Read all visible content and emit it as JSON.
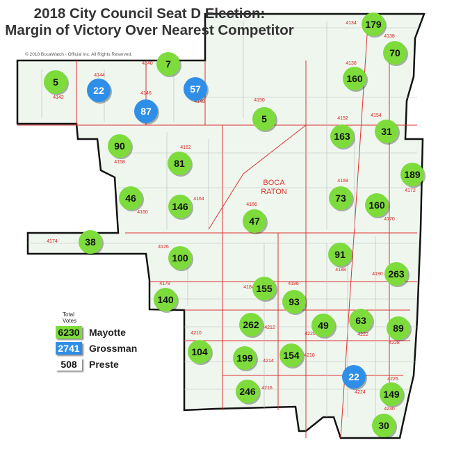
{
  "title_line1": "2018 City Council Seat D Election:",
  "title_line2": "Margin of Victory Over Nearest Competitor",
  "copyright": "© 2018 BocaWatch - Official Inc. All Rights Reserved.",
  "city_label_1": "BOCA",
  "city_label_2": "RATON",
  "colors": {
    "Mayotte": "#7ddc3c",
    "Grossman": "#2f8fe8",
    "Preste": "#ffffff",
    "map_fill": "#eef6ee",
    "boundary": "#d33"
  },
  "legend": {
    "heading_1": "Total",
    "heading_2": "Votes",
    "items": [
      {
        "candidate": "Mayotte",
        "votes": "6230"
      },
      {
        "candidate": "Grossman",
        "votes": "2741"
      },
      {
        "candidate": "Preste",
        "votes": "508"
      }
    ]
  },
  "precincts": [
    "4134",
    "4136",
    "4138",
    "4140",
    "4142",
    "4144",
    "4146",
    "4148",
    "4150",
    "4152",
    "4154",
    "4158",
    "4160",
    "4162",
    "4164",
    "4166",
    "4168",
    "4170",
    "4172",
    "4174",
    "4176",
    "4178",
    "4184",
    "4186",
    "4188",
    "4190",
    "4210",
    "4212",
    "4214",
    "4216",
    "4218",
    "4220",
    "4222",
    "4224",
    "4226",
    "4228",
    "4230"
  ],
  "margins": [
    {
      "value": "7",
      "winner": "Mayotte"
    },
    {
      "value": "179",
      "winner": "Mayotte"
    },
    {
      "value": "70",
      "winner": "Mayotte"
    },
    {
      "value": "5",
      "winner": "Mayotte"
    },
    {
      "value": "22",
      "winner": "Grossman"
    },
    {
      "value": "57",
      "winner": "Grossman"
    },
    {
      "value": "87",
      "winner": "Grossman"
    },
    {
      "value": "160",
      "winner": "Mayotte"
    },
    {
      "value": "5",
      "winner": "Mayotte"
    },
    {
      "value": "31",
      "winner": "Mayotte"
    },
    {
      "value": "163",
      "winner": "Mayotte"
    },
    {
      "value": "90",
      "winner": "Mayotte"
    },
    {
      "value": "81",
      "winner": "Mayotte"
    },
    {
      "value": "189",
      "winner": "Mayotte"
    },
    {
      "value": "46",
      "winner": "Mayotte"
    },
    {
      "value": "146",
      "winner": "Mayotte"
    },
    {
      "value": "73",
      "winner": "Mayotte"
    },
    {
      "value": "160",
      "winner": "Mayotte"
    },
    {
      "value": "47",
      "winner": "Mayotte"
    },
    {
      "value": "38",
      "winner": "Mayotte"
    },
    {
      "value": "91",
      "winner": "Mayotte"
    },
    {
      "value": "100",
      "winner": "Mayotte"
    },
    {
      "value": "263",
      "winner": "Mayotte"
    },
    {
      "value": "155",
      "winner": "Mayotte"
    },
    {
      "value": "93",
      "winner": "Mayotte"
    },
    {
      "value": "140",
      "winner": "Mayotte"
    },
    {
      "value": "262",
      "winner": "Mayotte"
    },
    {
      "value": "49",
      "winner": "Mayotte"
    },
    {
      "value": "63",
      "winner": "Mayotte"
    },
    {
      "value": "89",
      "winner": "Mayotte"
    },
    {
      "value": "104",
      "winner": "Mayotte"
    },
    {
      "value": "199",
      "winner": "Mayotte"
    },
    {
      "value": "154",
      "winner": "Mayotte"
    },
    {
      "value": "22",
      "winner": "Grossman"
    },
    {
      "value": "246",
      "winner": "Mayotte"
    },
    {
      "value": "149",
      "winner": "Mayotte"
    },
    {
      "value": "30",
      "winner": "Mayotte"
    }
  ]
}
